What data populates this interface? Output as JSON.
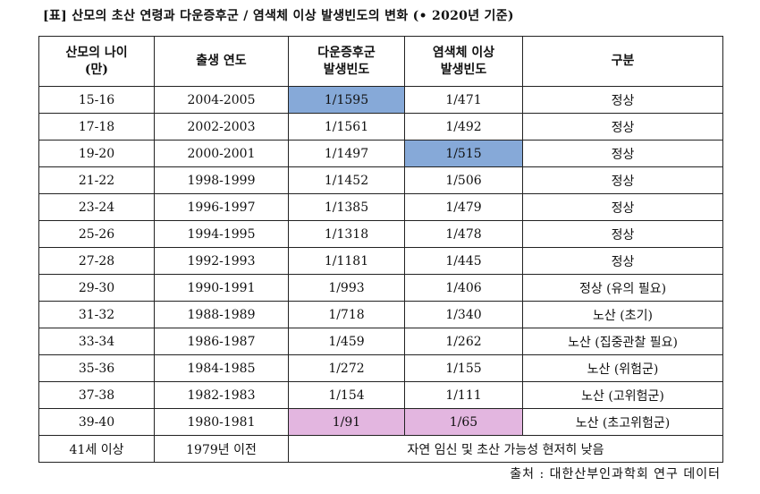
{
  "title": "[표] 산모의 초산 연령과 다운증후군 / 염색체 이상 발생빈도의 변화 (• 2020년 기준)",
  "table": {
    "header": [
      "산모의 나이\n(만)",
      "출생 연도",
      "다운증후군\n발생빈도",
      "염색체 이상\n발생빈도",
      "구분"
    ],
    "rows": [
      [
        "15-16",
        "2004-2005",
        "1/1595",
        "1/471",
        "정상"
      ],
      [
        "17-18",
        "2002-2003",
        "1/1561",
        "1/492",
        "정상"
      ],
      [
        "19-20",
        "2000-2001",
        "1/1497",
        "1/515",
        "정상"
      ],
      [
        "21-22",
        "1998-1999",
        "1/1452",
        "1/506",
        "정상"
      ],
      [
        "23-24",
        "1996-1997",
        "1/1385",
        "1/479",
        "정상"
      ],
      [
        "25-26",
        "1994-1995",
        "1/1318",
        "1/478",
        "정상"
      ],
      [
        "27-28",
        "1992-1993",
        "1/1181",
        "1/445",
        "정상"
      ],
      [
        "29-30",
        "1990-1991",
        "1/993",
        "1/406",
        "정상 (유의 필요)"
      ],
      [
        "31-32",
        "1988-1989",
        "1/718",
        "1/340",
        "노산 (초기)"
      ],
      [
        "33-34",
        "1986-1987",
        "1/459",
        "1/262",
        "노산 (집중관찰 필요)"
      ],
      [
        "35-36",
        "1984-1985",
        "1/272",
        "1/155",
        "노산 (위험군)"
      ],
      [
        "37-38",
        "1982-1983",
        "1/154",
        "1/111",
        "노산 (고위험군)"
      ],
      [
        "39-40",
        "1980-1981",
        "1/91",
        "1/65",
        "노산 (초고위험군)"
      ],
      [
        "41세 이상",
        "1979년 이전",
        "자연 임신 및 초산 가능성 현저히 낮음"
      ]
    ]
  },
  "source": "출처 : 대한산부인과학회 연구 데이터"
}
